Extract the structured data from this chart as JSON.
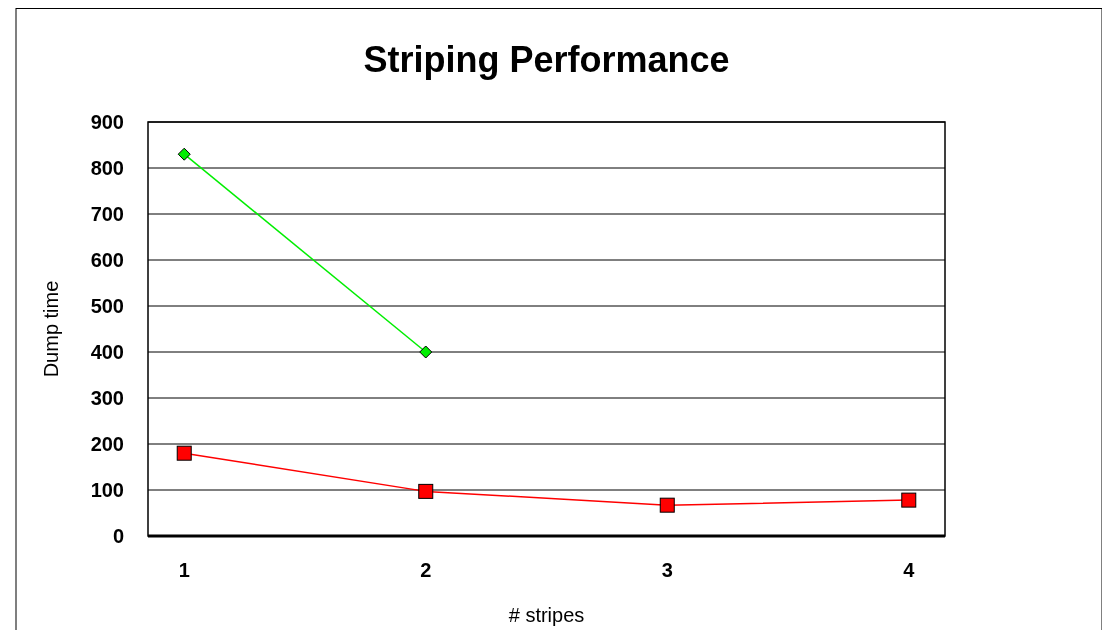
{
  "chart_data": {
    "type": "line",
    "title": "Striping Performance",
    "xlabel": "# stripes",
    "ylabel": "Dump time",
    "categories": [
      "1",
      "2",
      "3",
      "4"
    ],
    "ylim": [
      0,
      900
    ],
    "yticks": [
      0,
      100,
      200,
      300,
      400,
      500,
      600,
      700,
      800,
      900
    ],
    "grid": "y",
    "legend": false,
    "series": [
      {
        "color": "#ff0000",
        "marker": "square",
        "values": [
          180,
          97,
          67,
          78
        ]
      },
      {
        "color": "#00ee00",
        "marker": "diamond",
        "values": [
          830,
          400,
          null,
          null
        ]
      }
    ]
  }
}
